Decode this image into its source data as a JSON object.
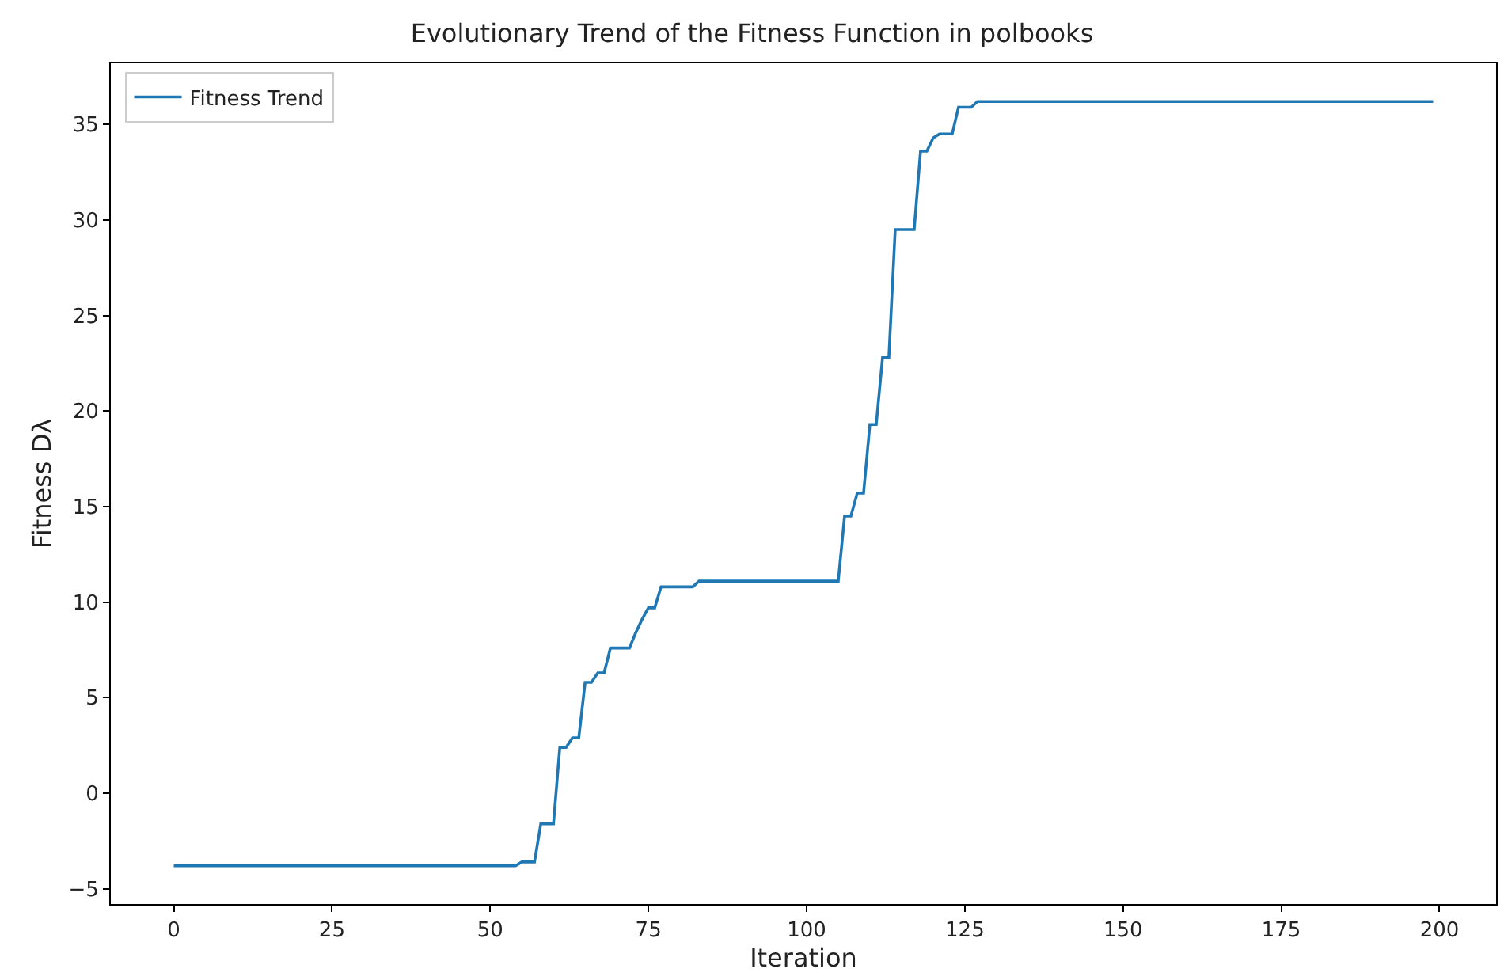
{
  "chart_data": {
    "type": "line",
    "title": "Evolutionary Trend of the Fitness Function in polbooks",
    "xlabel": "Iteration",
    "ylabel": "Fitness Dλ",
    "series": [
      {
        "name": "Fitness Trend",
        "color": "#1f77b4",
        "x": [
          0,
          54,
          55,
          57,
          58,
          60,
          61,
          62,
          63,
          64,
          65,
          66,
          67,
          68,
          69,
          72,
          73,
          74,
          75,
          76,
          77,
          82,
          83,
          105,
          106,
          107,
          108,
          109,
          110,
          111,
          112,
          113,
          114,
          117,
          118,
          119,
          120,
          121,
          123,
          124,
          126,
          127,
          199
        ],
        "values": [
          -3.8,
          -3.8,
          -3.6,
          -3.6,
          -1.6,
          -1.6,
          2.4,
          2.4,
          2.9,
          2.9,
          5.8,
          5.8,
          6.3,
          6.3,
          7.6,
          7.6,
          8.4,
          9.1,
          9.7,
          9.7,
          10.8,
          10.8,
          11.1,
          11.1,
          14.5,
          14.5,
          15.7,
          15.7,
          19.3,
          19.3,
          22.8,
          22.8,
          29.5,
          29.5,
          33.6,
          33.6,
          34.3,
          34.5,
          34.5,
          35.9,
          35.9,
          36.2,
          36.2
        ]
      }
    ],
    "xlim": [
      -9.95,
      208.95
    ],
    "ylim": [
      -5.8,
      38.2
    ],
    "xticks": [
      0,
      25,
      50,
      75,
      100,
      125,
      150,
      175,
      200
    ],
    "yticks": [
      {
        "value": -5,
        "label": "−5"
      },
      0,
      5,
      10,
      15,
      20,
      25,
      30,
      35
    ],
    "legend": "top left",
    "marker": "none",
    "line_style": "solid"
  }
}
